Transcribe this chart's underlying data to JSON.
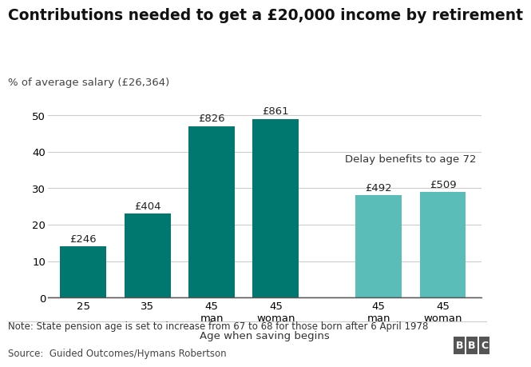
{
  "title": "Contributions needed to get a £20,000 income by retirement",
  "ylabel": "% of average salary (£26,364)",
  "xlabel": "Age when saving begins",
  "categories": [
    "25",
    "35",
    "45\nman",
    "45\nwoman",
    "45\nman",
    "45\nwoman"
  ],
  "values": [
    14,
    23,
    47,
    49,
    28,
    29
  ],
  "labels": [
    "£246",
    "£404",
    "£826",
    "£861",
    "£492",
    "£509"
  ],
  "color_dark": "#007870",
  "color_light": "#5bbdb8",
  "delay_label": "Delay benefits to age 72",
  "note": "Note: State pension age is set to increase from 67 to 68 for those born after 6 April 1978",
  "source": "Source:  Guided Outcomes/Hymans Robertson",
  "ylim": [
    0,
    55
  ],
  "yticks": [
    0,
    10,
    20,
    30,
    40,
    50
  ],
  "background_color": "#ffffff",
  "title_fontsize": 13.5,
  "bar_label_fontsize": 9.5,
  "note_fontsize": 8.5,
  "axis_fontsize": 9.5,
  "delay_fontsize": 9.5
}
